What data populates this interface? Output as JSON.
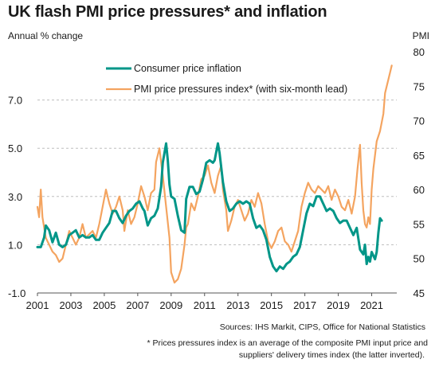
{
  "title": "UK flash PMI price pressures* and inflation",
  "footer": {
    "sources": "Sources: IHS Markit, CIPS, Office for National Statistics",
    "note_line1": "* Prices pressures index is an average of the composite PMI input price and",
    "note_line2": "suppliers' delivery times index (the latter inverted)."
  },
  "chart_data": {
    "type": "line",
    "ylabel_left": "Annual % change",
    "ylabel_right": "PMI",
    "x_ticks": [
      "2001",
      "2003",
      "2005",
      "2007",
      "2009",
      "2011",
      "2013",
      "2015",
      "2017",
      "2019",
      "2021"
    ],
    "xlim": [
      2001,
      2022.5
    ],
    "y_left": {
      "ticks": [
        "7.0",
        "5.0",
        "3.0",
        "1.0",
        "-1.0"
      ],
      "tick_values": [
        7,
        5,
        3,
        1,
        -1
      ],
      "ylim": [
        -1,
        9
      ]
    },
    "y_right": {
      "ticks": [
        "80",
        "75",
        "70",
        "65",
        "60",
        "55",
        "50",
        "45"
      ],
      "tick_values": [
        80,
        75,
        70,
        65,
        60,
        55,
        50,
        45
      ],
      "ylim": [
        45,
        80
      ]
    },
    "grid": "horizontal dashed at left-axis ticks",
    "legend_position": "top-center",
    "series": [
      {
        "name": "Consumer price inflation",
        "axis": "left",
        "color": "#009688",
        "points": [
          [
            2001.0,
            0.9
          ],
          [
            2001.2,
            0.9
          ],
          [
            2001.4,
            1.3
          ],
          [
            2001.5,
            1.8
          ],
          [
            2001.7,
            1.6
          ],
          [
            2001.9,
            1.1
          ],
          [
            2002.1,
            1.5
          ],
          [
            2002.3,
            1.0
          ],
          [
            2002.5,
            0.9
          ],
          [
            2002.7,
            1.0
          ],
          [
            2002.9,
            1.4
          ],
          [
            2003.1,
            1.5
          ],
          [
            2003.3,
            1.6
          ],
          [
            2003.5,
            1.3
          ],
          [
            2003.7,
            1.4
          ],
          [
            2003.9,
            1.3
          ],
          [
            2004.1,
            1.3
          ],
          [
            2004.3,
            1.4
          ],
          [
            2004.5,
            1.2
          ],
          [
            2004.7,
            1.2
          ],
          [
            2004.9,
            1.5
          ],
          [
            2005.1,
            1.7
          ],
          [
            2005.3,
            1.9
          ],
          [
            2005.5,
            2.4
          ],
          [
            2005.7,
            2.4
          ],
          [
            2005.9,
            2.1
          ],
          [
            2006.1,
            1.9
          ],
          [
            2006.3,
            2.2
          ],
          [
            2006.5,
            2.4
          ],
          [
            2006.7,
            2.5
          ],
          [
            2006.9,
            2.7
          ],
          [
            2007.1,
            2.8
          ],
          [
            2007.3,
            2.5
          ],
          [
            2007.4,
            2.4
          ],
          [
            2007.6,
            1.8
          ],
          [
            2007.8,
            2.1
          ],
          [
            2008.0,
            2.2
          ],
          [
            2008.2,
            2.5
          ],
          [
            2008.4,
            3.4
          ],
          [
            2008.5,
            4.4
          ],
          [
            2008.7,
            5.2
          ],
          [
            2008.8,
            4.5
          ],
          [
            2008.9,
            3.5
          ],
          [
            2009.0,
            3.0
          ],
          [
            2009.2,
            2.9
          ],
          [
            2009.4,
            2.2
          ],
          [
            2009.6,
            1.6
          ],
          [
            2009.8,
            1.5
          ],
          [
            2009.9,
            2.9
          ],
          [
            2010.1,
            3.4
          ],
          [
            2010.3,
            3.4
          ],
          [
            2010.5,
            3.1
          ],
          [
            2010.7,
            3.2
          ],
          [
            2010.9,
            3.7
          ],
          [
            2011.1,
            4.4
          ],
          [
            2011.3,
            4.5
          ],
          [
            2011.5,
            4.4
          ],
          [
            2011.6,
            4.5
          ],
          [
            2011.8,
            5.2
          ],
          [
            2011.9,
            4.8
          ],
          [
            2012.1,
            3.6
          ],
          [
            2012.3,
            2.8
          ],
          [
            2012.5,
            2.4
          ],
          [
            2012.7,
            2.5
          ],
          [
            2012.9,
            2.7
          ],
          [
            2013.1,
            2.8
          ],
          [
            2013.3,
            2.7
          ],
          [
            2013.5,
            2.8
          ],
          [
            2013.7,
            2.7
          ],
          [
            2013.9,
            2.1
          ],
          [
            2014.1,
            1.7
          ],
          [
            2014.3,
            1.8
          ],
          [
            2014.5,
            1.6
          ],
          [
            2014.7,
            1.2
          ],
          [
            2014.9,
            0.5
          ],
          [
            2015.1,
            0.1
          ],
          [
            2015.3,
            -0.1
          ],
          [
            2015.5,
            0.1
          ],
          [
            2015.7,
            0.0
          ],
          [
            2015.9,
            0.2
          ],
          [
            2016.1,
            0.3
          ],
          [
            2016.3,
            0.5
          ],
          [
            2016.5,
            0.6
          ],
          [
            2016.7,
            0.9
          ],
          [
            2016.9,
            1.6
          ],
          [
            2017.1,
            2.3
          ],
          [
            2017.3,
            2.7
          ],
          [
            2017.5,
            2.6
          ],
          [
            2017.7,
            3.0
          ],
          [
            2017.9,
            3.0
          ],
          [
            2018.1,
            2.7
          ],
          [
            2018.3,
            2.4
          ],
          [
            2018.5,
            2.5
          ],
          [
            2018.7,
            2.4
          ],
          [
            2018.9,
            2.1
          ],
          [
            2019.1,
            1.9
          ],
          [
            2019.3,
            2.0
          ],
          [
            2019.5,
            2.0
          ],
          [
            2019.7,
            1.7
          ],
          [
            2019.9,
            1.4
          ],
          [
            2020.1,
            1.7
          ],
          [
            2020.3,
            0.8
          ],
          [
            2020.5,
            0.6
          ],
          [
            2020.6,
            1.0
          ],
          [
            2020.7,
            0.2
          ],
          [
            2020.8,
            0.5
          ],
          [
            2020.9,
            0.3
          ],
          [
            2021.0,
            0.7
          ],
          [
            2021.2,
            0.4
          ],
          [
            2021.3,
            0.7
          ],
          [
            2021.4,
            1.5
          ],
          [
            2021.5,
            2.1
          ],
          [
            2021.6,
            2.0
          ]
        ]
      },
      {
        "name": "PMI price pressures index* (with six-month lead)",
        "axis": "right",
        "color": "#F4A460",
        "points": [
          [
            2001.0,
            57.5
          ],
          [
            2001.1,
            56.0
          ],
          [
            2001.2,
            60.0
          ],
          [
            2001.3,
            56.0
          ],
          [
            2001.5,
            53.0
          ],
          [
            2001.7,
            52.0
          ],
          [
            2001.9,
            51.0
          ],
          [
            2002.1,
            50.5
          ],
          [
            2002.3,
            49.5
          ],
          [
            2002.5,
            50.0
          ],
          [
            2002.7,
            52.0
          ],
          [
            2002.9,
            54.0
          ],
          [
            2003.1,
            53.0
          ],
          [
            2003.3,
            52.0
          ],
          [
            2003.5,
            53.0
          ],
          [
            2003.7,
            55.0
          ],
          [
            2003.9,
            53.0
          ],
          [
            2004.1,
            53.5
          ],
          [
            2004.3,
            54.0
          ],
          [
            2004.5,
            53.0
          ],
          [
            2004.7,
            55.0
          ],
          [
            2004.9,
            57.5
          ],
          [
            2005.1,
            60.0
          ],
          [
            2005.3,
            58.0
          ],
          [
            2005.5,
            56.5
          ],
          [
            2005.7,
            57.5
          ],
          [
            2005.9,
            59.0
          ],
          [
            2006.1,
            57.0
          ],
          [
            2006.2,
            54.0
          ],
          [
            2006.4,
            57.0
          ],
          [
            2006.6,
            55.0
          ],
          [
            2006.8,
            56.0
          ],
          [
            2007.0,
            58.0
          ],
          [
            2007.2,
            60.5
          ],
          [
            2007.4,
            59.0
          ],
          [
            2007.6,
            57.0
          ],
          [
            2007.8,
            59.5
          ],
          [
            2008.0,
            60.0
          ],
          [
            2008.1,
            64.0
          ],
          [
            2008.3,
            66.0
          ],
          [
            2008.5,
            62.0
          ],
          [
            2008.7,
            57.5
          ],
          [
            2008.9,
            53.0
          ],
          [
            2009.0,
            48.0
          ],
          [
            2009.2,
            46.5
          ],
          [
            2009.4,
            47.0
          ],
          [
            2009.6,
            48.5
          ],
          [
            2009.8,
            52.0
          ],
          [
            2009.9,
            54.5
          ],
          [
            2010.0,
            55.0
          ],
          [
            2010.2,
            58.0
          ],
          [
            2010.4,
            57.0
          ],
          [
            2010.6,
            59.0
          ],
          [
            2010.8,
            61.5
          ],
          [
            2011.0,
            62.0
          ],
          [
            2011.2,
            63.5
          ],
          [
            2011.4,
            61.0
          ],
          [
            2011.6,
            59.5
          ],
          [
            2011.8,
            62.0
          ],
          [
            2012.0,
            63.5
          ],
          [
            2012.1,
            60.0
          ],
          [
            2012.3,
            57.0
          ],
          [
            2012.4,
            54.0
          ],
          [
            2012.6,
            55.5
          ],
          [
            2012.8,
            57.5
          ],
          [
            2013.0,
            58.5
          ],
          [
            2013.2,
            57.0
          ],
          [
            2013.4,
            55.5
          ],
          [
            2013.6,
            56.5
          ],
          [
            2013.8,
            58.5
          ],
          [
            2014.0,
            57.5
          ],
          [
            2014.2,
            59.5
          ],
          [
            2014.4,
            58.0
          ],
          [
            2014.6,
            55.0
          ],
          [
            2014.8,
            52.5
          ],
          [
            2015.0,
            51.5
          ],
          [
            2015.2,
            52.5
          ],
          [
            2015.4,
            54.0
          ],
          [
            2015.6,
            54.5
          ],
          [
            2015.8,
            52.5
          ],
          [
            2016.0,
            52.0
          ],
          [
            2016.2,
            51.0
          ],
          [
            2016.4,
            52.5
          ],
          [
            2016.6,
            54.0
          ],
          [
            2016.8,
            57.5
          ],
          [
            2017.0,
            59.5
          ],
          [
            2017.2,
            61.0
          ],
          [
            2017.4,
            60.0
          ],
          [
            2017.6,
            59.5
          ],
          [
            2017.8,
            60.5
          ],
          [
            2018.0,
            60.0
          ],
          [
            2018.2,
            59.5
          ],
          [
            2018.4,
            60.5
          ],
          [
            2018.6,
            58.5
          ],
          [
            2018.8,
            60.0
          ],
          [
            2019.0,
            59.0
          ],
          [
            2019.2,
            57.5
          ],
          [
            2019.4,
            57.0
          ],
          [
            2019.6,
            58.5
          ],
          [
            2019.8,
            56.5
          ],
          [
            2020.0,
            59.0
          ],
          [
            2020.15,
            63.0
          ],
          [
            2020.3,
            66.5
          ],
          [
            2020.4,
            61.0
          ],
          [
            2020.5,
            57.0
          ],
          [
            2020.6,
            55.0
          ],
          [
            2020.7,
            54.5
          ],
          [
            2020.8,
            56.0
          ],
          [
            2020.9,
            55.0
          ],
          [
            2021.0,
            60.0
          ],
          [
            2021.1,
            63.0
          ],
          [
            2021.3,
            67.0
          ],
          [
            2021.5,
            68.5
          ],
          [
            2021.7,
            71.0
          ],
          [
            2021.8,
            74.0
          ],
          [
            2022.0,
            76.0
          ],
          [
            2022.1,
            77.0
          ],
          [
            2022.2,
            78.0
          ]
        ]
      }
    ]
  }
}
